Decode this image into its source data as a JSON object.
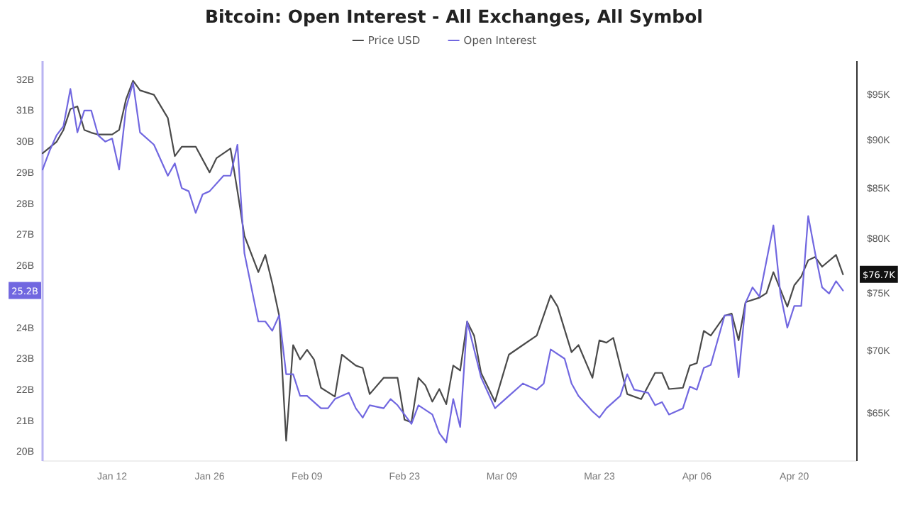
{
  "chart_data": {
    "type": "line",
    "title": "Bitcoin: Open Interest - All Exchanges, All Symbol",
    "legend": "top",
    "grid": false,
    "log": "y2",
    "xlim": [
      "--01-02",
      "--04-29"
    ],
    "xticks": [
      {
        "value": "--01-12",
        "label": "Jan 12"
      },
      {
        "value": "--01-26",
        "label": "Jan 26"
      },
      {
        "value": "--02-09",
        "label": "Feb 09"
      },
      {
        "value": "--02-23",
        "label": "Feb 23"
      },
      {
        "value": "--03-09",
        "label": "Mar 09"
      },
      {
        "value": "--03-23",
        "label": "Mar 23"
      },
      {
        "value": "--04-06",
        "label": "Apr 06"
      },
      {
        "value": "--04-20",
        "label": "Apr 20"
      }
    ],
    "ylim": [
      19.7,
      32.6
    ],
    "yticks": [
      {
        "value": 20,
        "label": "20B"
      },
      {
        "value": 21,
        "label": "21B"
      },
      {
        "value": 22,
        "label": "22B"
      },
      {
        "value": 23,
        "label": "23B"
      },
      {
        "value": 24,
        "label": "24B"
      },
      {
        "value": 26,
        "label": "26B"
      },
      {
        "value": 27,
        "label": "27B"
      },
      {
        "value": 28,
        "label": "28B"
      },
      {
        "value": 29,
        "label": "29B"
      },
      {
        "value": 30,
        "label": "30B"
      },
      {
        "value": 31,
        "label": "31B"
      },
      {
        "value": 32,
        "label": "32B"
      }
    ],
    "y2lim": [
      61400,
      98900
    ],
    "y2ticks": [
      {
        "value": 65000,
        "label": "$65K"
      },
      {
        "value": 70000,
        "label": "$70K"
      },
      {
        "value": 75000,
        "label": "$75K"
      },
      {
        "value": 80000,
        "label": "$80K"
      },
      {
        "value": 85000,
        "label": "$85K"
      },
      {
        "value": 90000,
        "label": "$90K"
      },
      {
        "value": 95000,
        "label": "$95K"
      }
    ],
    "annotations": [
      "$76.7K",
      "25.2B"
    ],
    "series": [
      {
        "name": "Price USD",
        "color": "#4a4a4a",
        "axis": "y2",
        "x": [
          "--01-02",
          "--01-04",
          "--01-05",
          "--01-06",
          "--01-07",
          "--01-08",
          "--01-09",
          "--01-10",
          "--01-12",
          "--01-13",
          "--01-14",
          "--01-15",
          "--01-16",
          "--01-18",
          "--01-20",
          "--01-21",
          "--01-22",
          "--01-24",
          "--01-26",
          "--01-27",
          "--01-29",
          "--01-30",
          "--01-31",
          "--02-02",
          "--02-03",
          "--02-04",
          "--02-05",
          "--02-06",
          "--02-07",
          "--02-08",
          "--02-09",
          "--02-10",
          "--02-11",
          "--02-13",
          "--02-14",
          "--02-16",
          "--02-17",
          "--02-18",
          "--02-20",
          "--02-22",
          "--02-23",
          "--02-24",
          "--02-25",
          "--02-26",
          "--02-27",
          "--02-28",
          "--03-01",
          "--03-02",
          "--03-03",
          "--03-04",
          "--03-05",
          "--03-06",
          "--03-08",
          "--03-10",
          "--03-12",
          "--03-14",
          "--03-16",
          "--03-17",
          "--03-19",
          "--03-20",
          "--03-22",
          "--03-23",
          "--03-24",
          "--03-25",
          "--03-27",
          "--03-29",
          "--03-31",
          "--04-01",
          "--04-02",
          "--04-04",
          "--04-05",
          "--04-06",
          "--04-07",
          "--04-08",
          "--04-10",
          "--04-11",
          "--04-12",
          "--04-13",
          "--04-15",
          "--04-16",
          "--04-17",
          "--04-19",
          "--04-20",
          "--04-21",
          "--04-22",
          "--04-23",
          "--04-24",
          "--04-26",
          "--04-27"
        ],
        "values": [
          88600,
          89800,
          91100,
          93400,
          93700,
          91100,
          90800,
          90600,
          90600,
          91100,
          94500,
          96600,
          95500,
          95000,
          92400,
          88300,
          89300,
          89300,
          86600,
          88100,
          89100,
          84700,
          80300,
          76900,
          78500,
          75900,
          73000,
          62900,
          70500,
          69300,
          70100,
          69300,
          67000,
          66300,
          69700,
          68800,
          68600,
          66500,
          67800,
          67800,
          64500,
          64300,
          67800,
          67200,
          65900,
          66900,
          65700,
          68800,
          68400,
          72500,
          71300,
          68200,
          65900,
          69700,
          70500,
          71300,
          74800,
          73800,
          69900,
          70500,
          67800,
          70900,
          70700,
          71100,
          66500,
          66100,
          68200,
          68200,
          66900,
          67000,
          68800,
          69000,
          71700,
          71300,
          73000,
          73200,
          70900,
          74200,
          74600,
          75000,
          76900,
          73800,
          75700,
          76500,
          78000,
          78300,
          77400,
          78500,
          76700
        ]
      },
      {
        "name": "Open Interest",
        "color": "#7167e0",
        "x": [
          "--01-02",
          "--01-03",
          "--01-04",
          "--01-05",
          "--01-06",
          "--01-07",
          "--01-08",
          "--01-09",
          "--01-10",
          "--01-11",
          "--01-12",
          "--01-13",
          "--01-14",
          "--01-15",
          "--01-16",
          "--01-18",
          "--01-20",
          "--01-21",
          "--01-22",
          "--01-23",
          "--01-24",
          "--01-25",
          "--01-26",
          "--01-28",
          "--01-29",
          "--01-30",
          "--01-31",
          "--02-02",
          "--02-03",
          "--02-04",
          "--02-05",
          "--02-06",
          "--02-07",
          "--02-08",
          "--02-09",
          "--02-11",
          "--02-12",
          "--02-13",
          "--02-15",
          "--02-16",
          "--02-17",
          "--02-18",
          "--02-20",
          "--02-21",
          "--02-22",
          "--02-24",
          "--02-25",
          "--02-27",
          "--02-28",
          "--03-01",
          "--03-02",
          "--03-03",
          "--03-04",
          "--03-06",
          "--03-07",
          "--03-08",
          "--03-10",
          "--03-12",
          "--03-14",
          "--03-15",
          "--03-16",
          "--03-18",
          "--03-19",
          "--03-20",
          "--03-22",
          "--03-23",
          "--03-24",
          "--03-26",
          "--03-27",
          "--03-28",
          "--03-30",
          "--03-31",
          "--04-01",
          "--04-02",
          "--04-04",
          "--04-05",
          "--04-06",
          "--04-07",
          "--04-08",
          "--04-10",
          "--04-11",
          "--04-12",
          "--04-13",
          "--04-14",
          "--04-15",
          "--04-17",
          "--04-18",
          "--04-19",
          "--04-20",
          "--04-21",
          "--04-22",
          "--04-23",
          "--04-24",
          "--04-25",
          "--04-26",
          "--04-27"
        ],
        "values": [
          29.1,
          29.7,
          30.2,
          30.5,
          31.7,
          30.3,
          31.0,
          31.0,
          30.2,
          30.0,
          30.1,
          29.1,
          31.1,
          31.9,
          30.3,
          29.9,
          28.9,
          29.3,
          28.5,
          28.4,
          27.7,
          28.3,
          28.4,
          28.9,
          28.9,
          29.9,
          26.4,
          24.2,
          24.2,
          23.9,
          24.4,
          22.5,
          22.5,
          21.8,
          21.8,
          21.4,
          21.4,
          21.7,
          21.9,
          21.4,
          21.1,
          21.5,
          21.4,
          21.7,
          21.5,
          20.9,
          21.5,
          21.2,
          20.6,
          20.3,
          21.7,
          20.8,
          24.2,
          22.4,
          21.9,
          21.4,
          21.8,
          22.2,
          22.0,
          22.2,
          23.3,
          23.0,
          22.2,
          21.8,
          21.3,
          21.1,
          21.4,
          21.8,
          22.5,
          22.0,
          21.9,
          21.5,
          21.6,
          21.2,
          21.4,
          22.1,
          22.0,
          22.7,
          22.8,
          24.4,
          24.4,
          22.4,
          24.8,
          25.3,
          25.0,
          27.3,
          25.1,
          24.0,
          24.7,
          24.7,
          27.6,
          26.4,
          25.3,
          25.1,
          25.5,
          25.2
        ]
      }
    ]
  }
}
